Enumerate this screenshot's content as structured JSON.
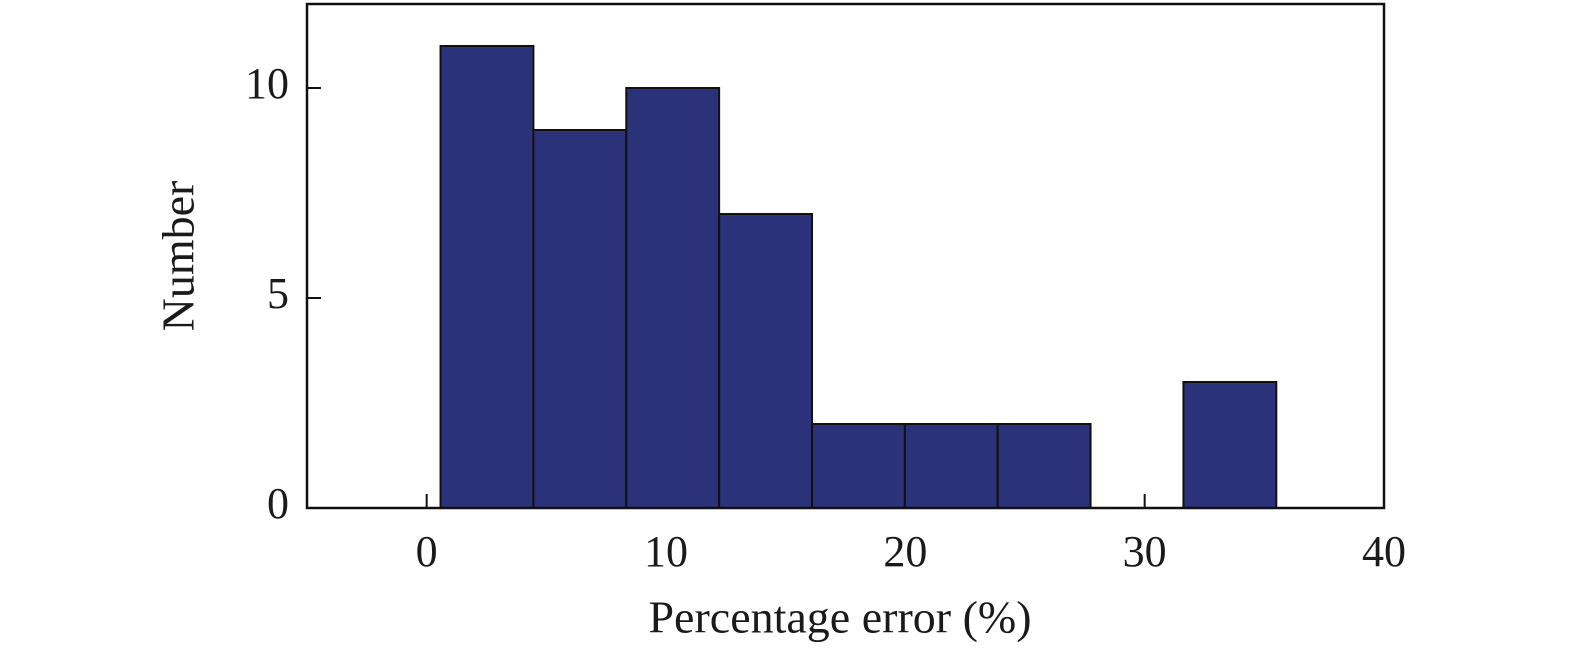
{
  "chart_data": {
    "type": "histogram",
    "xlabel": "Percentage error (%)",
    "ylabel": "Number",
    "bins": [
      0.58,
      4.46,
      8.34,
      12.22,
      16.1,
      19.98,
      23.86,
      27.74,
      31.62,
      35.5
    ],
    "values": [
      11,
      9,
      10,
      7,
      2,
      2,
      2,
      0,
      3
    ],
    "color": "#2b327a",
    "xlim": [
      -5,
      40
    ],
    "ylim": [
      0,
      12
    ],
    "xticks": [
      0,
      10,
      20,
      30,
      40
    ],
    "yticks": [
      0,
      5,
      10
    ]
  }
}
